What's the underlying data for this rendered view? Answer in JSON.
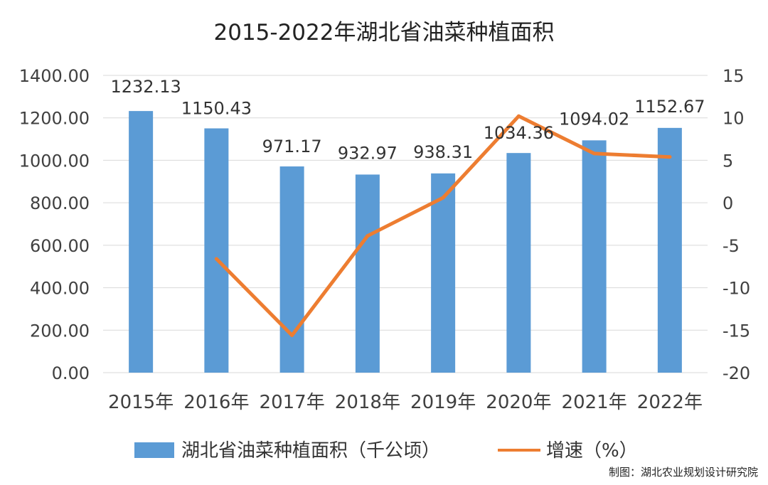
{
  "chart_data": {
    "type": "bar",
    "title": "2015-2022年湖北省油菜种植面积",
    "categories": [
      "2015年",
      "2016年",
      "2017年",
      "2018年",
      "2019年",
      "2020年",
      "2021年",
      "2022年"
    ],
    "series": [
      {
        "name": "湖北省油菜种植面积（千公顷）",
        "type": "bar",
        "axis": "left",
        "values": [
          1232.13,
          1150.43,
          971.17,
          932.97,
          938.31,
          1034.36,
          1094.02,
          1152.67
        ],
        "labels": [
          "1232.13",
          "1150.43",
          "971.17",
          "932.97",
          "938.31",
          "1034.36",
          "1094.02",
          "1152.67"
        ]
      },
      {
        "name": "增速（%）",
        "type": "line",
        "axis": "right",
        "values": [
          null,
          -6.6,
          -15.6,
          -3.9,
          0.6,
          10.2,
          5.8,
          5.4
        ]
      }
    ],
    "y_left": {
      "min": 0,
      "max": 1400,
      "ticks": [
        "0.00",
        "200.00",
        "400.00",
        "600.00",
        "800.00",
        "1000.00",
        "1200.00",
        "1400.00"
      ]
    },
    "y_right": {
      "min": -20,
      "max": 15,
      "ticks": [
        "-20",
        "-15",
        "-10",
        "-5",
        "0",
        "5",
        "10",
        "15"
      ]
    },
    "grid": true,
    "legend": "bottom",
    "colors": {
      "bar": "#5b9bd5",
      "line": "#ed7d31",
      "grid": "#d9d9d9",
      "text": "#404040"
    }
  },
  "credit": "制图：湖北农业规划设计研究院"
}
